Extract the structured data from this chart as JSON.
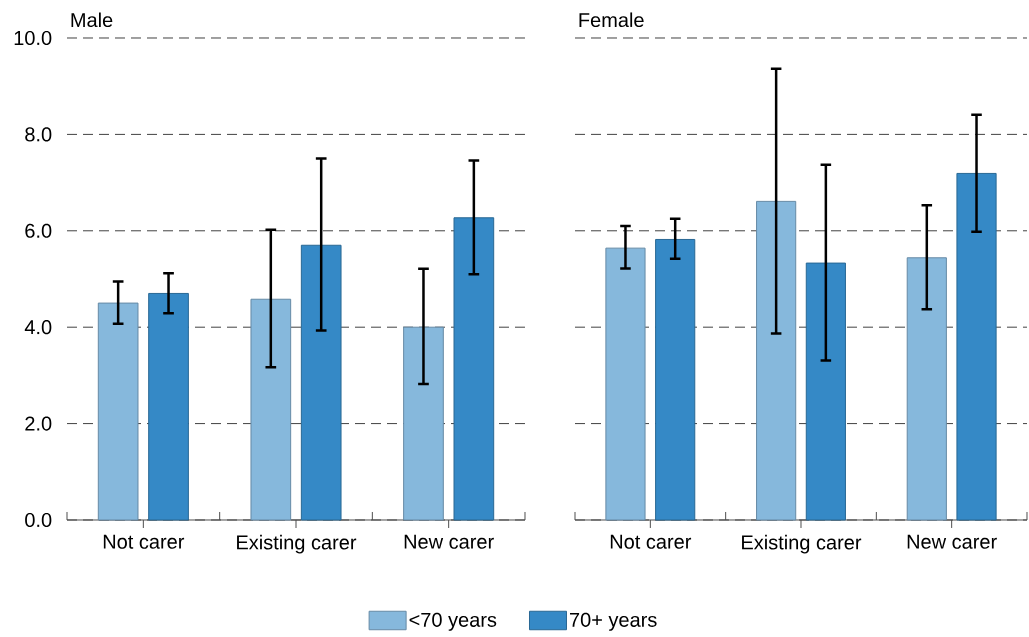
{
  "chart_data": [
    {
      "type": "bar",
      "title": "Male",
      "categories": [
        "Not carer",
        "Existing carer",
        "New carer"
      ],
      "series": [
        {
          "name": "<70 years",
          "color": "#86b8dc",
          "values": [
            4.5,
            4.58,
            4.0
          ],
          "errors": [
            [
              4.07,
              4.95
            ],
            [
              3.17,
              6.02
            ],
            [
              2.82,
              5.21
            ]
          ]
        },
        {
          "name": "70+ years",
          "color": "#3589c6",
          "values": [
            4.7,
            5.7,
            6.27
          ],
          "errors": [
            [
              4.29,
              5.12
            ],
            [
              3.93,
              7.5
            ],
            [
              5.1,
              7.46
            ]
          ]
        }
      ],
      "ylim": [
        0,
        10
      ],
      "yticks": [
        {
          "value": 0,
          "label": "0.0"
        },
        {
          "value": 2,
          "label": "2.0"
        },
        {
          "value": 4,
          "label": "4.0"
        },
        {
          "value": 6,
          "label": "6.0"
        },
        {
          "value": 8,
          "label": "8.0"
        },
        {
          "value": 10,
          "label": "10.0"
        }
      ],
      "grid": "y",
      "legend": "bottom"
    },
    {
      "type": "bar",
      "title": "Female",
      "categories": [
        "Not carer",
        "Existing carer",
        "New carer"
      ],
      "series": [
        {
          "color": "#86b8dc",
          "values": [
            5.64,
            6.61,
            5.44
          ],
          "errors": [
            [
              5.22,
              6.1
            ],
            [
              3.87,
              9.36
            ],
            [
              4.37,
              6.53
            ]
          ]
        },
        {
          "color": "#3589c6",
          "values": [
            5.82,
            5.33,
            7.19
          ],
          "errors": [
            [
              5.42,
              6.25
            ],
            [
              3.31,
              7.37
            ],
            [
              5.98,
              8.41
            ]
          ]
        }
      ],
      "ylim": [
        0,
        10
      ],
      "yticks": [
        0,
        2,
        4,
        6,
        8,
        10
      ],
      "grid": "y",
      "tick_labels": "x"
    }
  ]
}
